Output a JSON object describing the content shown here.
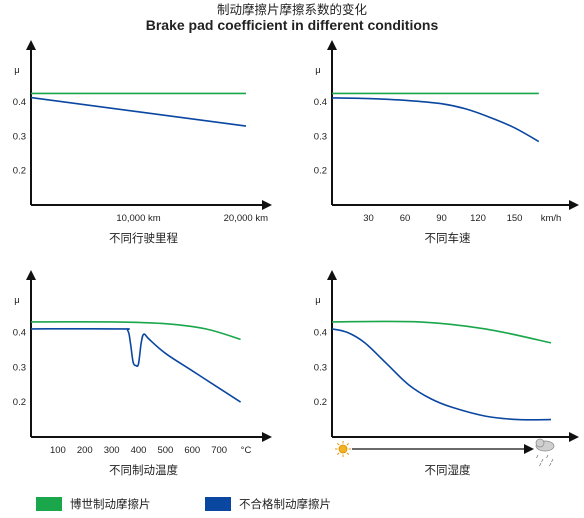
{
  "title": "制动摩擦片摩擦系数的变化",
  "subtitle": "Brake pad coefficient in different conditions",
  "legend": {
    "bosch": {
      "label": "博世制动摩擦片",
      "color": "#1aa64a"
    },
    "other": {
      "label": "不合格制动摩擦片",
      "color": "#0a47a0"
    }
  },
  "chart_data": [
    {
      "type": "line",
      "caption": "不同行驶里程",
      "ylabel": "μ",
      "yticks": [
        "0.2",
        "0.3",
        "0.4"
      ],
      "ylim": [
        0.1,
        0.47
      ],
      "xticks": [
        {
          "value": 10000,
          "label": "10,000 km"
        },
        {
          "value": 20000,
          "label": "20,000 km"
        }
      ],
      "xlim": [
        0,
        20000
      ],
      "series": [
        {
          "key": "bosch",
          "x": [
            0,
            20000
          ],
          "y": [
            0.425,
            0.425
          ]
        },
        {
          "key": "other",
          "x": [
            0,
            20000
          ],
          "y": [
            0.413,
            0.33
          ]
        }
      ]
    },
    {
      "type": "line",
      "caption": "不同车速",
      "ylabel": "μ",
      "yticks": [
        "0.2",
        "0.3",
        "0.4"
      ],
      "ylim": [
        0.1,
        0.47
      ],
      "xticks": [
        {
          "value": 30,
          "label": "30"
        },
        {
          "value": 60,
          "label": "60"
        },
        {
          "value": 90,
          "label": "90"
        },
        {
          "value": 120,
          "label": "120"
        },
        {
          "value": 150,
          "label": "150"
        },
        {
          "value": 180,
          "label": "km/h"
        }
      ],
      "xlim": [
        0,
        180
      ],
      "series": [
        {
          "key": "bosch",
          "x": [
            0,
            170
          ],
          "y": [
            0.425,
            0.425
          ]
        },
        {
          "key": "other",
          "x": [
            0,
            30,
            60,
            90,
            110,
            130,
            150,
            170
          ],
          "y": [
            0.412,
            0.41,
            0.405,
            0.395,
            0.38,
            0.355,
            0.325,
            0.285
          ]
        }
      ]
    },
    {
      "type": "line",
      "caption": "不同制动温度",
      "ylabel": "μ",
      "yticks": [
        "0.2",
        "0.3",
        "0.4"
      ],
      "ylim": [
        0.1,
        0.47
      ],
      "xticks": [
        {
          "value": 100,
          "label": "100"
        },
        {
          "value": 200,
          "label": "200"
        },
        {
          "value": 300,
          "label": "300"
        },
        {
          "value": 400,
          "label": "400"
        },
        {
          "value": 500,
          "label": "500"
        },
        {
          "value": 600,
          "label": "600"
        },
        {
          "value": 700,
          "label": "700"
        },
        {
          "value": 800,
          "label": "°C"
        }
      ],
      "xlim": [
        0,
        800
      ],
      "series": [
        {
          "key": "bosch",
          "x": [
            0,
            300,
            500,
            650,
            780
          ],
          "y": [
            0.43,
            0.43,
            0.425,
            0.41,
            0.38
          ]
        },
        {
          "key": "other",
          "x": [
            0,
            330,
            360,
            370,
            380,
            390,
            400,
            410,
            420,
            440,
            500,
            600,
            700,
            780
          ],
          "y": [
            0.41,
            0.41,
            0.405,
            0.37,
            0.315,
            0.305,
            0.31,
            0.37,
            0.395,
            0.38,
            0.34,
            0.29,
            0.24,
            0.2
          ]
        }
      ]
    },
    {
      "type": "line",
      "caption": "不同湿度",
      "ylabel": "μ",
      "yticks": [
        "0.2",
        "0.3",
        "0.4"
      ],
      "ylim": [
        0.1,
        0.47
      ],
      "xlim": [
        0,
        100
      ],
      "x_axis_icons": [
        "sun-icon",
        "rain-cloud-icon"
      ],
      "series": [
        {
          "key": "bosch",
          "x": [
            0,
            40,
            70,
            100
          ],
          "y": [
            0.43,
            0.43,
            0.41,
            0.37
          ]
        },
        {
          "key": "other",
          "x": [
            0,
            7,
            15,
            25,
            35,
            45,
            55,
            70,
            85,
            100
          ],
          "y": [
            0.41,
            0.4,
            0.37,
            0.31,
            0.25,
            0.21,
            0.185,
            0.16,
            0.15,
            0.15
          ]
        }
      ]
    }
  ]
}
